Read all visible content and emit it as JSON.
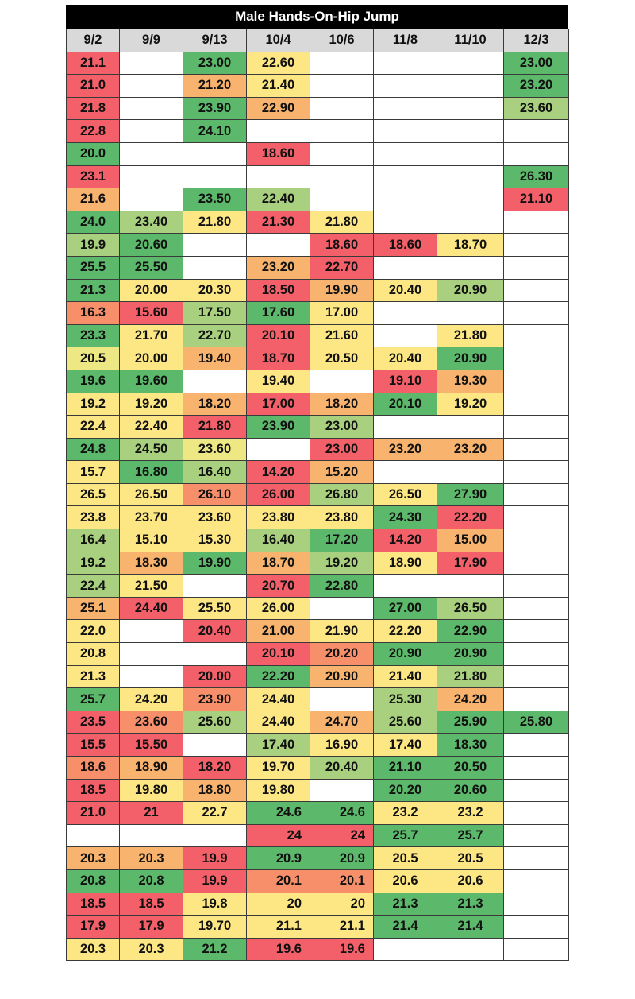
{
  "title": "Male Hands-On-Hip Jump",
  "headers": [
    "9/2",
    "9/9",
    "9/13",
    "10/4",
    "10/6",
    "11/8",
    "11/10",
    "12/3"
  ],
  "palette": {
    "G": "#5cb86a",
    "LG": "#a8d07e",
    "Y": "#fde784",
    "YL": "#eee884",
    "O": "#f8b46e",
    "SO": "#f78f6b",
    "R": "#f3606a",
    "W": "#ffffff"
  },
  "rows": [
    [
      [
        "21.1",
        "R"
      ],
      [
        "",
        "W"
      ],
      [
        "23.00",
        "G"
      ],
      [
        "22.60",
        "Y"
      ],
      [
        "",
        "W"
      ],
      [
        "",
        "W"
      ],
      [
        "",
        "W"
      ],
      [
        "23.00",
        "G"
      ]
    ],
    [
      [
        "21.0",
        "R"
      ],
      [
        "",
        "W"
      ],
      [
        "21.20",
        "O"
      ],
      [
        "21.40",
        "Y"
      ],
      [
        "",
        "W"
      ],
      [
        "",
        "W"
      ],
      [
        "",
        "W"
      ],
      [
        "23.20",
        "G"
      ]
    ],
    [
      [
        "21.8",
        "R"
      ],
      [
        "",
        "W"
      ],
      [
        "23.90",
        "G"
      ],
      [
        "22.90",
        "O"
      ],
      [
        "",
        "W"
      ],
      [
        "",
        "W"
      ],
      [
        "",
        "W"
      ],
      [
        "23.60",
        "LG"
      ]
    ],
    [
      [
        "22.8",
        "R"
      ],
      [
        "",
        "W"
      ],
      [
        "24.10",
        "G"
      ],
      [
        "",
        "W"
      ],
      [
        "",
        "W"
      ],
      [
        "",
        "W"
      ],
      [
        "",
        "W"
      ],
      [
        "",
        "W"
      ]
    ],
    [
      [
        "20.0",
        "G"
      ],
      [
        "",
        "W"
      ],
      [
        "",
        "W"
      ],
      [
        "18.60",
        "R"
      ],
      [
        "",
        "W"
      ],
      [
        "",
        "W"
      ],
      [
        "",
        "W"
      ],
      [
        "",
        "W"
      ]
    ],
    [
      [
        "23.1",
        "R"
      ],
      [
        "",
        "W"
      ],
      [
        "",
        "W"
      ],
      [
        "",
        "W"
      ],
      [
        "",
        "W"
      ],
      [
        "",
        "W"
      ],
      [
        "",
        "W"
      ],
      [
        "26.30",
        "G"
      ]
    ],
    [
      [
        "21.6",
        "O"
      ],
      [
        "",
        "W"
      ],
      [
        "23.50",
        "G"
      ],
      [
        "22.40",
        "LG"
      ],
      [
        "",
        "W"
      ],
      [
        "",
        "W"
      ],
      [
        "",
        "W"
      ],
      [
        "21.10",
        "R"
      ]
    ],
    [
      [
        "24.0",
        "G"
      ],
      [
        "23.40",
        "LG"
      ],
      [
        "21.80",
        "Y"
      ],
      [
        "21.30",
        "R"
      ],
      [
        "21.80",
        "Y"
      ],
      [
        "",
        "W"
      ],
      [
        "",
        "W"
      ],
      [
        "",
        "W"
      ]
    ],
    [
      [
        "19.9",
        "LG"
      ],
      [
        "20.60",
        "G"
      ],
      [
        "",
        "W"
      ],
      [
        "",
        "W"
      ],
      [
        "18.60",
        "R"
      ],
      [
        "18.60",
        "R"
      ],
      [
        "18.70",
        "Y"
      ],
      [
        "",
        "W"
      ]
    ],
    [
      [
        "25.5",
        "G"
      ],
      [
        "25.50",
        "G"
      ],
      [
        "",
        "W"
      ],
      [
        "23.20",
        "O"
      ],
      [
        "22.70",
        "R"
      ],
      [
        "",
        "W"
      ],
      [
        "",
        "W"
      ],
      [
        "",
        "W"
      ]
    ],
    [
      [
        "21.3",
        "G"
      ],
      [
        "20.00",
        "Y"
      ],
      [
        "20.30",
        "Y"
      ],
      [
        "18.50",
        "R"
      ],
      [
        "19.90",
        "O"
      ],
      [
        "20.40",
        "Y"
      ],
      [
        "20.90",
        "LG"
      ],
      [
        "",
        "W"
      ]
    ],
    [
      [
        "16.3",
        "SO"
      ],
      [
        "15.60",
        "R"
      ],
      [
        "17.50",
        "LG"
      ],
      [
        "17.60",
        "G"
      ],
      [
        "17.00",
        "Y"
      ],
      [
        "",
        "W"
      ],
      [
        "",
        "W"
      ],
      [
        "",
        "W"
      ]
    ],
    [
      [
        "23.3",
        "G"
      ],
      [
        "21.70",
        "Y"
      ],
      [
        "22.70",
        "LG"
      ],
      [
        "20.10",
        "R"
      ],
      [
        "21.60",
        "Y"
      ],
      [
        "",
        "W"
      ],
      [
        "21.80",
        "Y"
      ],
      [
        "",
        "W"
      ]
    ],
    [
      [
        "20.5",
        "YL"
      ],
      [
        "20.00",
        "Y"
      ],
      [
        "19.40",
        "O"
      ],
      [
        "18.70",
        "R"
      ],
      [
        "20.50",
        "Y"
      ],
      [
        "20.40",
        "Y"
      ],
      [
        "20.90",
        "G"
      ],
      [
        "",
        "W"
      ]
    ],
    [
      [
        "19.6",
        "G"
      ],
      [
        "19.60",
        "G"
      ],
      [
        "",
        "W"
      ],
      [
        "19.40",
        "Y"
      ],
      [
        "",
        "W"
      ],
      [
        "19.10",
        "R"
      ],
      [
        "19.30",
        "O"
      ],
      [
        "",
        "W"
      ]
    ],
    [
      [
        "19.2",
        "Y"
      ],
      [
        "19.20",
        "Y"
      ],
      [
        "18.20",
        "O"
      ],
      [
        "17.00",
        "R"
      ],
      [
        "18.20",
        "O"
      ],
      [
        "20.10",
        "G"
      ],
      [
        "19.20",
        "Y"
      ],
      [
        "",
        "W"
      ]
    ],
    [
      [
        "22.4",
        "Y"
      ],
      [
        "22.40",
        "Y"
      ],
      [
        "21.80",
        "R"
      ],
      [
        "23.90",
        "G"
      ],
      [
        "23.00",
        "LG"
      ],
      [
        "",
        "W"
      ],
      [
        "",
        "W"
      ],
      [
        "",
        "W"
      ]
    ],
    [
      [
        "24.8",
        "G"
      ],
      [
        "24.50",
        "LG"
      ],
      [
        "23.60",
        "YL"
      ],
      [
        "",
        "W"
      ],
      [
        "23.00",
        "R"
      ],
      [
        "23.20",
        "O"
      ],
      [
        "23.20",
        "O"
      ],
      [
        "",
        "W"
      ]
    ],
    [
      [
        "15.7",
        "Y"
      ],
      [
        "16.80",
        "G"
      ],
      [
        "16.40",
        "LG"
      ],
      [
        "14.20",
        "R"
      ],
      [
        "15.20",
        "O"
      ],
      [
        "",
        "W"
      ],
      [
        "",
        "W"
      ],
      [
        "",
        "W"
      ]
    ],
    [
      [
        "26.5",
        "Y"
      ],
      [
        "26.50",
        "Y"
      ],
      [
        "26.10",
        "SO"
      ],
      [
        "26.00",
        "R"
      ],
      [
        "26.80",
        "LG"
      ],
      [
        "26.50",
        "Y"
      ],
      [
        "27.90",
        "G"
      ],
      [
        "",
        "W"
      ]
    ],
    [
      [
        "23.8",
        "Y"
      ],
      [
        "23.70",
        "Y"
      ],
      [
        "23.60",
        "Y"
      ],
      [
        "23.80",
        "Y"
      ],
      [
        "23.80",
        "Y"
      ],
      [
        "24.30",
        "G"
      ],
      [
        "22.20",
        "R"
      ],
      [
        "",
        "W"
      ]
    ],
    [
      [
        "16.4",
        "LG"
      ],
      [
        "15.10",
        "Y"
      ],
      [
        "15.30",
        "Y"
      ],
      [
        "16.40",
        "LG"
      ],
      [
        "17.20",
        "G"
      ],
      [
        "14.20",
        "R"
      ],
      [
        "15.00",
        "O"
      ],
      [
        "",
        "W"
      ]
    ],
    [
      [
        "19.2",
        "LG"
      ],
      [
        "18.30",
        "O"
      ],
      [
        "19.90",
        "G"
      ],
      [
        "18.70",
        "O"
      ],
      [
        "19.20",
        "LG"
      ],
      [
        "18.90",
        "Y"
      ],
      [
        "17.90",
        "R"
      ],
      [
        "",
        "W"
      ]
    ],
    [
      [
        "22.4",
        "LG"
      ],
      [
        "21.50",
        "Y"
      ],
      [
        "",
        "W"
      ],
      [
        "20.70",
        "R"
      ],
      [
        "22.80",
        "G"
      ],
      [
        "",
        "W"
      ],
      [
        "",
        "W"
      ],
      [
        "",
        "W"
      ]
    ],
    [
      [
        "25.1",
        "O"
      ],
      [
        "24.40",
        "R"
      ],
      [
        "25.50",
        "Y"
      ],
      [
        "26.00",
        "Y"
      ],
      [
        "",
        "W"
      ],
      [
        "27.00",
        "G"
      ],
      [
        "26.50",
        "LG"
      ],
      [
        "",
        "W"
      ]
    ],
    [
      [
        "22.0",
        "Y"
      ],
      [
        "",
        "W"
      ],
      [
        "20.40",
        "R"
      ],
      [
        "21.00",
        "O"
      ],
      [
        "21.90",
        "Y"
      ],
      [
        "22.20",
        "Y"
      ],
      [
        "22.90",
        "G"
      ],
      [
        "",
        "W"
      ]
    ],
    [
      [
        "20.8",
        "Y"
      ],
      [
        "",
        "W"
      ],
      [
        "",
        "W"
      ],
      [
        "20.10",
        "R"
      ],
      [
        "20.20",
        "SO"
      ],
      [
        "20.90",
        "G"
      ],
      [
        "20.90",
        "G"
      ],
      [
        "",
        "W"
      ]
    ],
    [
      [
        "21.3",
        "Y"
      ],
      [
        "",
        "W"
      ],
      [
        "20.00",
        "R"
      ],
      [
        "22.20",
        "G"
      ],
      [
        "20.90",
        "O"
      ],
      [
        "21.40",
        "Y"
      ],
      [
        "21.80",
        "LG"
      ],
      [
        "",
        "W"
      ]
    ],
    [
      [
        "25.7",
        "G"
      ],
      [
        "24.20",
        "Y"
      ],
      [
        "23.90",
        "SO"
      ],
      [
        "24.40",
        "Y"
      ],
      [
        "",
        "W"
      ],
      [
        "25.30",
        "LG"
      ],
      [
        "24.20",
        "O"
      ],
      [
        "",
        "W"
      ]
    ],
    [
      [
        "23.5",
        "R"
      ],
      [
        "23.60",
        "SO"
      ],
      [
        "25.60",
        "LG"
      ],
      [
        "24.40",
        "Y"
      ],
      [
        "24.70",
        "O"
      ],
      [
        "25.60",
        "LG"
      ],
      [
        "25.90",
        "G"
      ],
      [
        "25.80",
        "G"
      ]
    ],
    [
      [
        "15.5",
        "R"
      ],
      [
        "15.50",
        "R"
      ],
      [
        "",
        "W"
      ],
      [
        "17.40",
        "LG"
      ],
      [
        "16.90",
        "Y"
      ],
      [
        "17.40",
        "Y"
      ],
      [
        "18.30",
        "G"
      ],
      [
        "",
        "W"
      ]
    ],
    [
      [
        "18.6",
        "SO"
      ],
      [
        "18.90",
        "O"
      ],
      [
        "18.20",
        "R"
      ],
      [
        "19.70",
        "Y"
      ],
      [
        "20.40",
        "LG"
      ],
      [
        "21.10",
        "G"
      ],
      [
        "20.50",
        "G"
      ],
      [
        "",
        "W"
      ]
    ],
    [
      [
        "18.5",
        "R"
      ],
      [
        "19.80",
        "Y"
      ],
      [
        "18.80",
        "O"
      ],
      [
        "19.80",
        "Y"
      ],
      [
        "",
        "W"
      ],
      [
        "20.20",
        "G"
      ],
      [
        "20.60",
        "G"
      ],
      [
        "",
        "W"
      ]
    ],
    [
      [
        "21.0",
        "R"
      ],
      [
        "21",
        "R"
      ],
      [
        "22.7",
        "Y"
      ],
      [
        "24.6",
        "G"
      ],
      [
        "24.6",
        "G"
      ],
      [
        "23.2",
        "Y"
      ],
      [
        "23.2",
        "Y"
      ],
      [
        "",
        "W"
      ]
    ],
    [
      [
        "",
        "W"
      ],
      [
        "",
        "W"
      ],
      [
        "",
        "W"
      ],
      [
        "24",
        "R"
      ],
      [
        "24",
        "R"
      ],
      [
        "25.7",
        "G"
      ],
      [
        "25.7",
        "G"
      ],
      [
        "",
        "W"
      ]
    ],
    [
      [
        "20.3",
        "O"
      ],
      [
        "20.3",
        "O"
      ],
      [
        "19.9",
        "R"
      ],
      [
        "20.9",
        "G"
      ],
      [
        "20.9",
        "G"
      ],
      [
        "20.5",
        "Y"
      ],
      [
        "20.5",
        "Y"
      ],
      [
        "",
        "W"
      ]
    ],
    [
      [
        "20.8",
        "G"
      ],
      [
        "20.8",
        "G"
      ],
      [
        "19.9",
        "R"
      ],
      [
        "20.1",
        "SO"
      ],
      [
        "20.1",
        "SO"
      ],
      [
        "20.6",
        "Y"
      ],
      [
        "20.6",
        "Y"
      ],
      [
        "",
        "W"
      ]
    ],
    [
      [
        "18.5",
        "R"
      ],
      [
        "18.5",
        "R"
      ],
      [
        "19.8",
        "Y"
      ],
      [
        "20",
        "Y"
      ],
      [
        "20",
        "Y"
      ],
      [
        "21.3",
        "G"
      ],
      [
        "21.3",
        "G"
      ],
      [
        "",
        "W"
      ]
    ],
    [
      [
        "17.9",
        "R"
      ],
      [
        "17.9",
        "R"
      ],
      [
        "19.70",
        "Y"
      ],
      [
        "21.1",
        "Y"
      ],
      [
        "21.1",
        "Y"
      ],
      [
        "21.4",
        "G"
      ],
      [
        "21.4",
        "G"
      ],
      [
        "",
        "W"
      ]
    ],
    [
      [
        "20.3",
        "Y"
      ],
      [
        "20.3",
        "Y"
      ],
      [
        "21.2",
        "G"
      ],
      [
        "19.6",
        "R"
      ],
      [
        "19.6",
        "R"
      ],
      [
        "",
        "W"
      ],
      [
        "",
        "W"
      ],
      [
        "",
        "W"
      ]
    ]
  ]
}
